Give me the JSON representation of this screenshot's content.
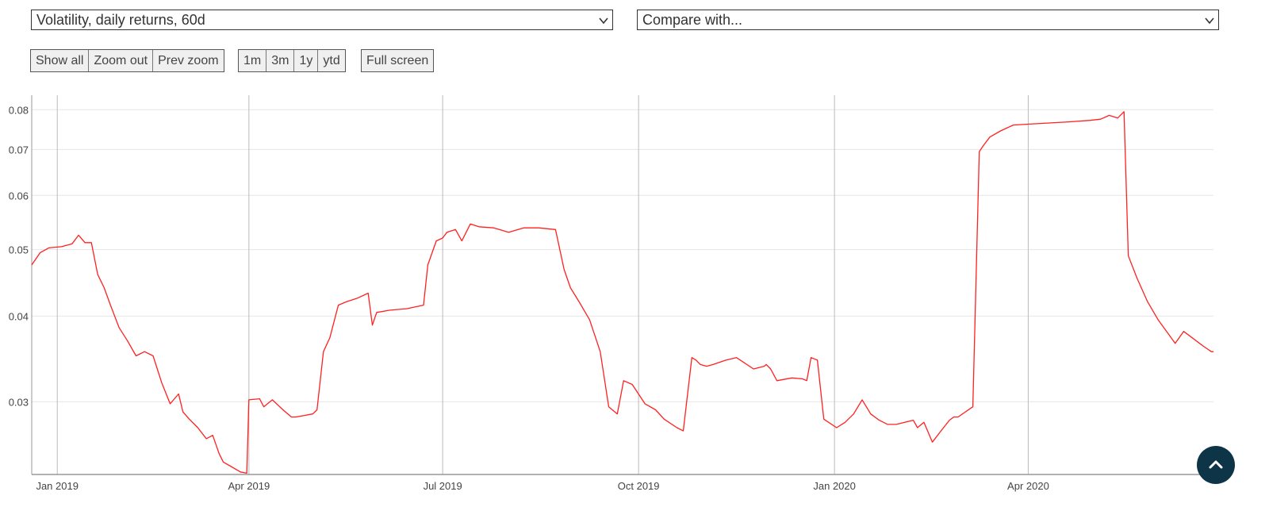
{
  "controls": {
    "metric_select": "Volatility, daily returns, 60d",
    "compare_select": "Compare with...",
    "zoom_buttons": [
      "Show all",
      "Zoom out",
      "Prev zoom"
    ],
    "range_buttons": [
      "1m",
      "3m",
      "1y",
      "ytd"
    ],
    "fullscreen_label": "Full screen"
  },
  "colors": {
    "line": "#ff2020",
    "accent": "#0e3448",
    "grid": "#e6e6e6",
    "vgrid": "#bbbbbb"
  },
  "icons": {
    "dropdown": "chevron-down-icon",
    "scroll_top": "chevron-up-icon"
  },
  "chart_data": {
    "type": "line",
    "title": "",
    "xlabel": "",
    "ylabel": "",
    "yscale": "log",
    "ylim": [
      0.0235,
      0.084
    ],
    "xlim": [
      "2018-12-20",
      "2020-06-27"
    ],
    "grid": true,
    "x_ticks": [
      "2019-01-01",
      "2019-04-01",
      "2019-07-01",
      "2019-10-01",
      "2020-01-01",
      "2020-04-01"
    ],
    "x_tick_labels": [
      "Jan 2019",
      "Apr 2019",
      "Jul 2019",
      "Oct 2019",
      "Jan 2020",
      "Apr 2020"
    ],
    "y_ticks": [
      0.03,
      0.04,
      0.05,
      0.06,
      0.07,
      0.08
    ],
    "y_tick_labels": [
      "0.03",
      "0.04",
      "0.05",
      "0.06",
      "0.07",
      "0.08"
    ],
    "series": [
      {
        "x": [
          "2018-12-20",
          "2018-12-24",
          "2018-12-28",
          "2019-01-03",
          "2019-01-08",
          "2019-01-11",
          "2019-01-14",
          "2019-01-17",
          "2019-01-20",
          "2019-01-23",
          "2019-01-26",
          "2019-01-30",
          "2019-02-03",
          "2019-02-07",
          "2019-02-11",
          "2019-02-15",
          "2019-02-19",
          "2019-02-23",
          "2019-02-27",
          "2019-03-01",
          "2019-03-04",
          "2019-03-08",
          "2019-03-12",
          "2019-03-15",
          "2019-03-18",
          "2019-03-20",
          "2019-03-23",
          "2019-03-28",
          "2019-03-31",
          "2019-04-01",
          "2019-04-06",
          "2019-04-08",
          "2019-04-12",
          "2019-04-17",
          "2019-04-21",
          "2019-04-23",
          "2019-05-01",
          "2019-05-03",
          "2019-05-06",
          "2019-05-09",
          "2019-05-13",
          "2019-05-17",
          "2019-05-22",
          "2019-05-27",
          "2019-05-29",
          "2019-05-31",
          "2019-06-06",
          "2019-06-14",
          "2019-06-22",
          "2019-06-24",
          "2019-06-28",
          "2019-07-01",
          "2019-07-03",
          "2019-07-07",
          "2019-07-10",
          "2019-07-14",
          "2019-07-18",
          "2019-07-25",
          "2019-08-01",
          "2019-08-08",
          "2019-08-15",
          "2019-08-23",
          "2019-08-27",
          "2019-08-30",
          "2019-09-03",
          "2019-09-08",
          "2019-09-13",
          "2019-09-17",
          "2019-09-21",
          "2019-09-24",
          "2019-09-28",
          "2019-10-04",
          "2019-10-09",
          "2019-10-13",
          "2019-10-19",
          "2019-10-22",
          "2019-10-26",
          "2019-10-28",
          "2019-10-30",
          "2019-11-02",
          "2019-11-05",
          "2019-11-11",
          "2019-11-16",
          "2019-11-24",
          "2019-11-29",
          "2019-11-30",
          "2019-12-02",
          "2019-12-05",
          "2019-12-12",
          "2019-12-17",
          "2019-12-19",
          "2019-12-21",
          "2019-12-24",
          "2019-12-27",
          "2020-01-02",
          "2020-01-06",
          "2020-01-10",
          "2020-01-14",
          "2020-01-18",
          "2020-01-22",
          "2020-01-26",
          "2020-01-30",
          "2020-02-03",
          "2020-02-07",
          "2020-02-09",
          "2020-02-12",
          "2020-02-16",
          "2020-02-20",
          "2020-02-24",
          "2020-02-26",
          "2020-02-28",
          "2020-03-06",
          "2020-03-09",
          "2020-03-11",
          "2020-03-14",
          "2020-03-19",
          "2020-03-25",
          "2020-03-31",
          "2020-04-10",
          "2020-04-20",
          "2020-04-30",
          "2020-05-05",
          "2020-05-09",
          "2020-05-13",
          "2020-05-16",
          "2020-05-18",
          "2020-05-22",
          "2020-05-27",
          "2020-06-01",
          "2020-06-05",
          "2020-06-09",
          "2020-06-13",
          "2020-06-18",
          "2020-06-22",
          "2020-06-26",
          "2020-06-27"
        ],
        "y": [
          0.0475,
          0.0495,
          0.0503,
          0.0505,
          0.051,
          0.0525,
          0.0512,
          0.0512,
          0.046,
          0.044,
          0.0415,
          0.0385,
          0.0368,
          0.035,
          0.0355,
          0.035,
          0.032,
          0.0298,
          0.0308,
          0.029,
          0.0283,
          0.0275,
          0.0265,
          0.0268,
          0.0252,
          0.0245,
          0.0242,
          0.0237,
          0.0236,
          0.0302,
          0.0303,
          0.0295,
          0.0302,
          0.0292,
          0.0285,
          0.0285,
          0.0288,
          0.0292,
          0.0355,
          0.0372,
          0.0415,
          0.042,
          0.0425,
          0.0432,
          0.0388,
          0.0405,
          0.0408,
          0.041,
          0.0415,
          0.0475,
          0.0515,
          0.052,
          0.053,
          0.0535,
          0.0515,
          0.0545,
          0.054,
          0.0538,
          0.053,
          0.0538,
          0.0538,
          0.0535,
          0.0468,
          0.044,
          0.042,
          0.0395,
          0.0355,
          0.0295,
          0.0288,
          0.0322,
          0.0318,
          0.0298,
          0.0292,
          0.0283,
          0.0275,
          0.0272,
          0.0348,
          0.0345,
          0.034,
          0.0338,
          0.034,
          0.0345,
          0.0348,
          0.0335,
          0.0338,
          0.034,
          0.0335,
          0.0322,
          0.0325,
          0.0324,
          0.0322,
          0.0348,
          0.0345,
          0.0283,
          0.0275,
          0.028,
          0.0288,
          0.0302,
          0.0288,
          0.0282,
          0.0278,
          0.0278,
          0.028,
          0.0282,
          0.0275,
          0.028,
          0.0262,
          0.0272,
          0.0282,
          0.0285,
          0.0285,
          0.0295,
          0.0695,
          0.071,
          0.073,
          0.0745,
          0.076,
          0.0762,
          0.0765,
          0.0768,
          0.0772,
          0.0775,
          0.0785,
          0.0778,
          0.0795,
          0.049,
          0.0455,
          0.042,
          0.0395,
          0.038,
          0.0365,
          0.038,
          0.037,
          0.0362,
          0.0355,
          0.0355
        ]
      }
    ]
  }
}
